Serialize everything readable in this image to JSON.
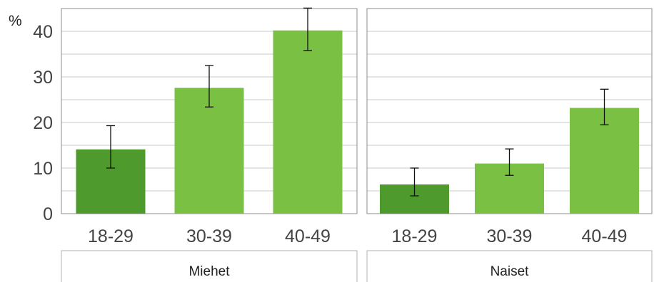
{
  "chart_data": {
    "type": "bar",
    "y_unit_label": "%",
    "ylim": [
      0,
      45
    ],
    "yticks": [
      0,
      10,
      20,
      30,
      40
    ],
    "grid": true,
    "panels": [
      {
        "name": "Miehet",
        "categories": [
          "18-29",
          "30-39",
          "40-49"
        ],
        "values": [
          14.1,
          27.6,
          40.2
        ],
        "error_low": [
          10.0,
          23.4,
          35.8
        ],
        "error_high": [
          19.3,
          32.5,
          45.1
        ],
        "colors": [
          "#4f9a2d",
          "#7ac143",
          "#7ac143"
        ]
      },
      {
        "name": "Naiset",
        "categories": [
          "18-29",
          "30-39",
          "40-49"
        ],
        "values": [
          6.4,
          11.0,
          23.2
        ],
        "error_low": [
          3.9,
          8.4,
          19.5
        ],
        "error_high": [
          10.0,
          14.2,
          27.3
        ],
        "colors": [
          "#4f9a2d",
          "#7ac143",
          "#7ac143"
        ]
      }
    ]
  }
}
